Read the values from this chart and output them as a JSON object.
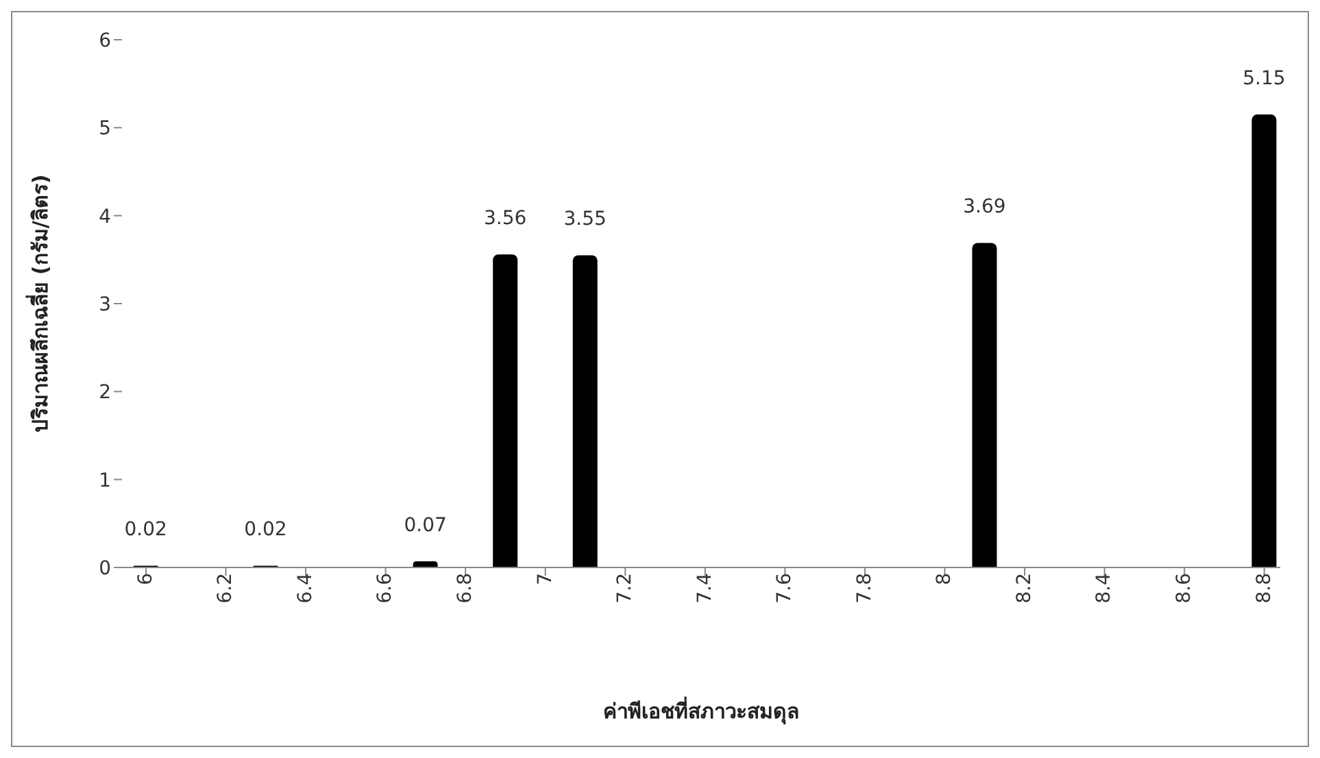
{
  "chart_data": {
    "type": "bar",
    "xlabel": "ค่าพีเอชที่สภาวะสมดุล",
    "ylabel": "ปริมาณผลึกเฉลี่ย (กรัม/ลิตร)",
    "x": [
      6,
      6.3,
      6.7,
      6.9,
      7.1,
      8.1,
      8.8
    ],
    "values": [
      0.02,
      0.02,
      0.07,
      3.56,
      3.55,
      3.69,
      5.15
    ],
    "color": "#000000",
    "xlim": [
      5.94,
      8.84
    ],
    "xticks": [
      6,
      6.2,
      6.4,
      6.6,
      6.8,
      7,
      7.2,
      7.4,
      7.6,
      7.8,
      8,
      8.2,
      8.4,
      8.6,
      8.8
    ],
    "ylim": [
      0,
      6
    ],
    "yticks": [
      0,
      1,
      2,
      3,
      4,
      5,
      6
    ],
    "grid": false,
    "legend": false,
    "data_labels": true
  }
}
